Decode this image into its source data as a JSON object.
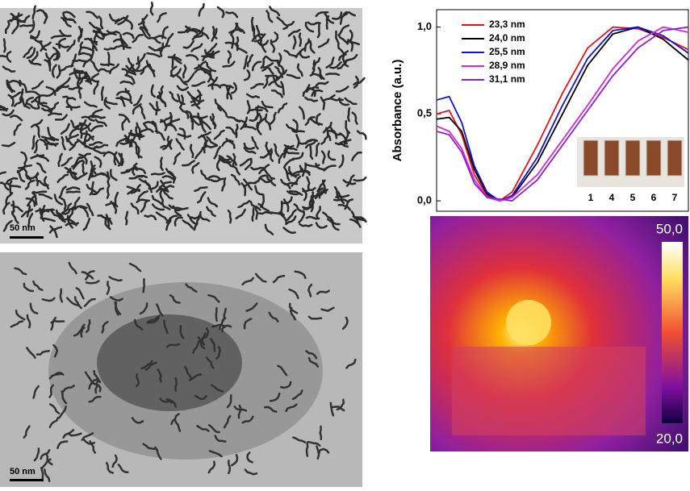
{
  "tem_top": {
    "scale_bar": "50 nm"
  },
  "tem_bottom": {
    "scale_bar": "50 nm"
  },
  "chart_data": {
    "type": "line",
    "y_label": "Absorbance (a.u.)",
    "x": [
      0,
      5,
      10,
      15,
      20,
      25,
      30,
      40,
      50,
      60,
      70,
      80,
      90,
      100
    ],
    "xlim": [
      0,
      100
    ],
    "ylim": [
      -0.06,
      1.1
    ],
    "yticks": [
      {
        "value": 0,
        "label": "0,0"
      },
      {
        "value": 0.5,
        "label": "0,5"
      },
      {
        "value": 1,
        "label": "1,0"
      }
    ],
    "series": [
      {
        "name": "23,3 nm",
        "color": "#ee1111",
        "values": [
          0.5,
          0.52,
          0.38,
          0.15,
          0.03,
          0.0,
          0.05,
          0.32,
          0.62,
          0.88,
          1.0,
          0.99,
          0.94,
          0.87
        ]
      },
      {
        "name": "24,0 nm",
        "color": "#000000",
        "values": [
          0.47,
          0.48,
          0.4,
          0.18,
          0.04,
          0.0,
          0.02,
          0.22,
          0.5,
          0.78,
          0.96,
          1.0,
          0.93,
          0.81
        ]
      },
      {
        "name": "25,5 nm",
        "color": "#1111dd",
        "values": [
          0.58,
          0.6,
          0.45,
          0.2,
          0.05,
          0.0,
          0.03,
          0.25,
          0.55,
          0.82,
          0.98,
          1.0,
          0.95,
          0.85
        ]
      },
      {
        "name": "28,9 nm",
        "color": "#dd22dd",
        "values": [
          0.43,
          0.4,
          0.3,
          0.12,
          0.02,
          0.0,
          0.02,
          0.15,
          0.35,
          0.55,
          0.76,
          0.92,
          1.0,
          0.97
        ]
      },
      {
        "name": "31,1 nm",
        "color": "#8822cc",
        "values": [
          0.4,
          0.38,
          0.28,
          0.1,
          0.02,
          0.01,
          0.0,
          0.12,
          0.32,
          0.52,
          0.72,
          0.88,
          0.98,
          1.0
        ]
      }
    ],
    "inset_labels": [
      "1",
      "4",
      "5",
      "6",
      "7"
    ]
  },
  "thermal": {
    "max_label": "50,0",
    "min_label": "20,0"
  }
}
